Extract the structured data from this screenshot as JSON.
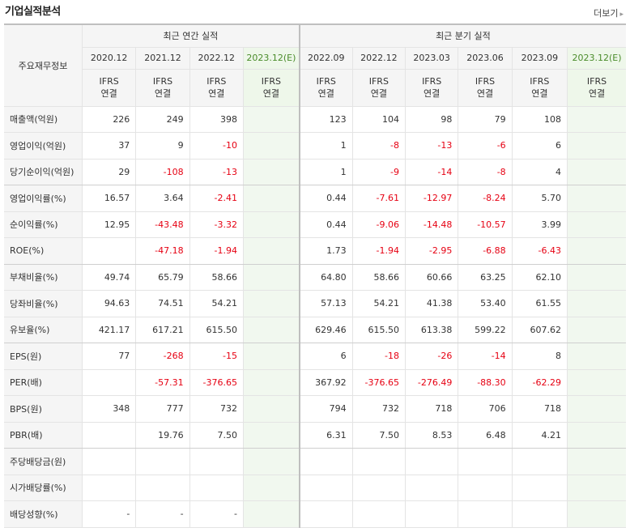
{
  "header": {
    "title": "기업실적분석",
    "more_label": "더보기",
    "more_arrow": "▸"
  },
  "table": {
    "row_header_label": "주요재무정보",
    "groups": {
      "annual": "최근 연간 실적",
      "quarter": "최근 분기 실적"
    },
    "periods": [
      "2020.12",
      "2021.12",
      "2022.12",
      "2023.12(E)",
      "2022.09",
      "2022.12",
      "2023.03",
      "2023.06",
      "2023.09",
      "2023.12(E)"
    ],
    "accounting": [
      "IFRS",
      "연결"
    ],
    "rows": [
      {
        "label": "매출액(억원)",
        "values": [
          "226",
          "249",
          "398",
          "",
          "123",
          "104",
          "98",
          "79",
          "108",
          ""
        ]
      },
      {
        "label": "영업이익(억원)",
        "values": [
          "37",
          "9",
          "-10",
          "",
          "1",
          "-8",
          "-13",
          "-6",
          "6",
          ""
        ]
      },
      {
        "label": "당기순이익(억원)",
        "values": [
          "29",
          "-108",
          "-13",
          "",
          "1",
          "-9",
          "-14",
          "-8",
          "4",
          ""
        ]
      },
      {
        "label": "영업이익률(%)",
        "values": [
          "16.57",
          "3.64",
          "-2.41",
          "",
          "0.44",
          "-7.61",
          "-12.97",
          "-8.24",
          "5.70",
          ""
        ]
      },
      {
        "label": "순이익률(%)",
        "values": [
          "12.95",
          "-43.48",
          "-3.32",
          "",
          "0.44",
          "-9.06",
          "-14.48",
          "-10.57",
          "3.99",
          ""
        ]
      },
      {
        "label": "ROE(%)",
        "values": [
          "",
          "-47.18",
          "-1.94",
          "",
          "1.73",
          "-1.94",
          "-2.95",
          "-6.88",
          "-6.43",
          ""
        ]
      },
      {
        "label": "부채비율(%)",
        "values": [
          "49.74",
          "65.79",
          "58.66",
          "",
          "64.80",
          "58.66",
          "60.66",
          "63.25",
          "62.10",
          ""
        ]
      },
      {
        "label": "당좌비율(%)",
        "values": [
          "94.63",
          "74.51",
          "54.21",
          "",
          "57.13",
          "54.21",
          "41.38",
          "53.40",
          "61.55",
          ""
        ]
      },
      {
        "label": "유보율(%)",
        "values": [
          "421.17",
          "617.21",
          "615.50",
          "",
          "629.46",
          "615.50",
          "613.38",
          "599.22",
          "607.62",
          ""
        ]
      },
      {
        "label": "EPS(원)",
        "values": [
          "77",
          "-268",
          "-15",
          "",
          "6",
          "-18",
          "-26",
          "-14",
          "8",
          ""
        ]
      },
      {
        "label": "PER(배)",
        "values": [
          "",
          "-57.31",
          "-376.65",
          "",
          "367.92",
          "-376.65",
          "-276.49",
          "-88.30",
          "-62.29",
          ""
        ]
      },
      {
        "label": "BPS(원)",
        "values": [
          "348",
          "777",
          "732",
          "",
          "794",
          "732",
          "718",
          "706",
          "718",
          ""
        ]
      },
      {
        "label": "PBR(배)",
        "values": [
          "",
          "19.76",
          "7.50",
          "",
          "6.31",
          "7.50",
          "8.53",
          "6.48",
          "4.21",
          ""
        ]
      },
      {
        "label": "주당배당금(원)",
        "values": [
          "",
          "",
          "",
          "",
          "",
          "",
          "",
          "",
          "",
          ""
        ]
      },
      {
        "label": "시가배당률(%)",
        "values": [
          "",
          "",
          "",
          "",
          "",
          "",
          "",
          "",
          "",
          ""
        ]
      },
      {
        "label": "배당성향(%)",
        "values": [
          "-",
          "-",
          "-",
          "",
          "",
          "",
          "",
          "",
          "",
          ""
        ]
      }
    ]
  }
}
